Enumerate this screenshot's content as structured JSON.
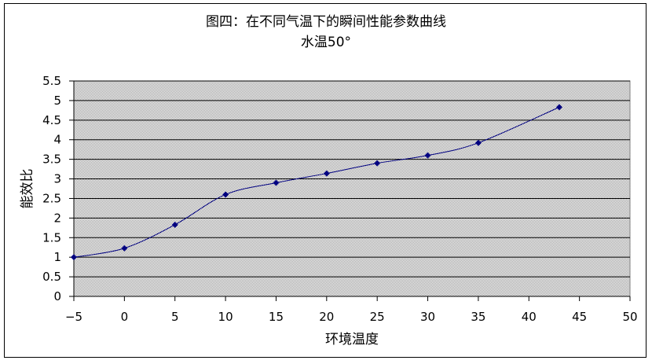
{
  "chart_data": {
    "type": "line",
    "title": "图四：在不同气温下的瞬间性能参数曲线",
    "subtitle": "水温50°",
    "xlabel": "环境温度",
    "ylabel": "能效比",
    "xlim": [
      -5,
      50
    ],
    "ylim": [
      0,
      5.5
    ],
    "x_ticks": [
      "−5",
      "0",
      "5",
      "10",
      "15",
      "20",
      "25",
      "30",
      "35",
      "40",
      "45",
      "50"
    ],
    "y_ticks": [
      "0",
      "0.5",
      "1",
      "1.5",
      "2",
      "2.5",
      "3",
      "3.5",
      "4",
      "4.5",
      "5",
      "5.5"
    ],
    "grid": true,
    "series": [
      {
        "x": [
          -5,
          0,
          5,
          10,
          15,
          20,
          25,
          30,
          35,
          43
        ],
        "y": [
          1.0,
          1.23,
          1.83,
          2.6,
          2.9,
          3.14,
          3.4,
          3.6,
          3.92,
          4.83
        ]
      }
    ],
    "colors": {
      "line": "#000080",
      "marker": "#000080",
      "plot_bg": "#c0c0c0",
      "grid": "#000000"
    }
  }
}
